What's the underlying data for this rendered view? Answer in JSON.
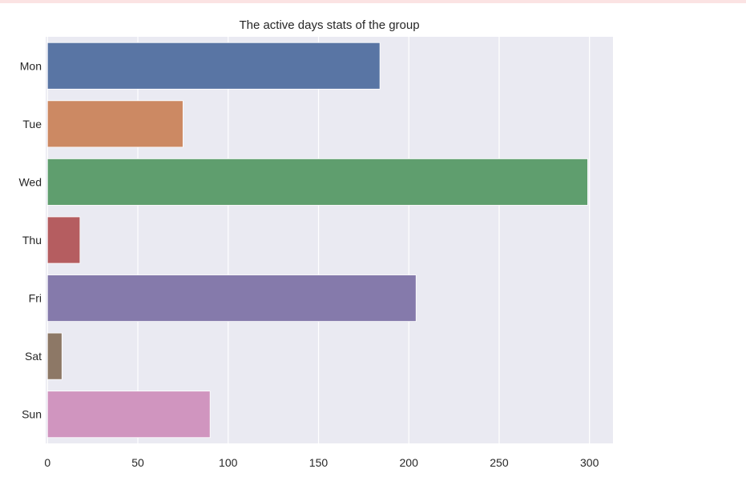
{
  "page": {
    "background": "#ffffff",
    "top_strip_color": "#fbe3e3"
  },
  "chart_data": {
    "type": "bar",
    "orientation": "horizontal",
    "title": "The active days stats of the group",
    "xlabel": "",
    "ylabel": "",
    "categories": [
      "Mon",
      "Tue",
      "Wed",
      "Thu",
      "Fri",
      "Sat",
      "Sun"
    ],
    "values": [
      184,
      75,
      299,
      18,
      204,
      8,
      90
    ],
    "colors": [
      "#5975a4",
      "#cc8963",
      "#5f9e6e",
      "#b55d60",
      "#857aab",
      "#8d7866",
      "#d095bf"
    ],
    "xlim": [
      -1,
      313
    ],
    "xticks": [
      0,
      50,
      100,
      150,
      200,
      250,
      300
    ],
    "grid": true,
    "legend": "none",
    "plot_background": "#eaeaf2",
    "grid_color": "#ffffff"
  }
}
